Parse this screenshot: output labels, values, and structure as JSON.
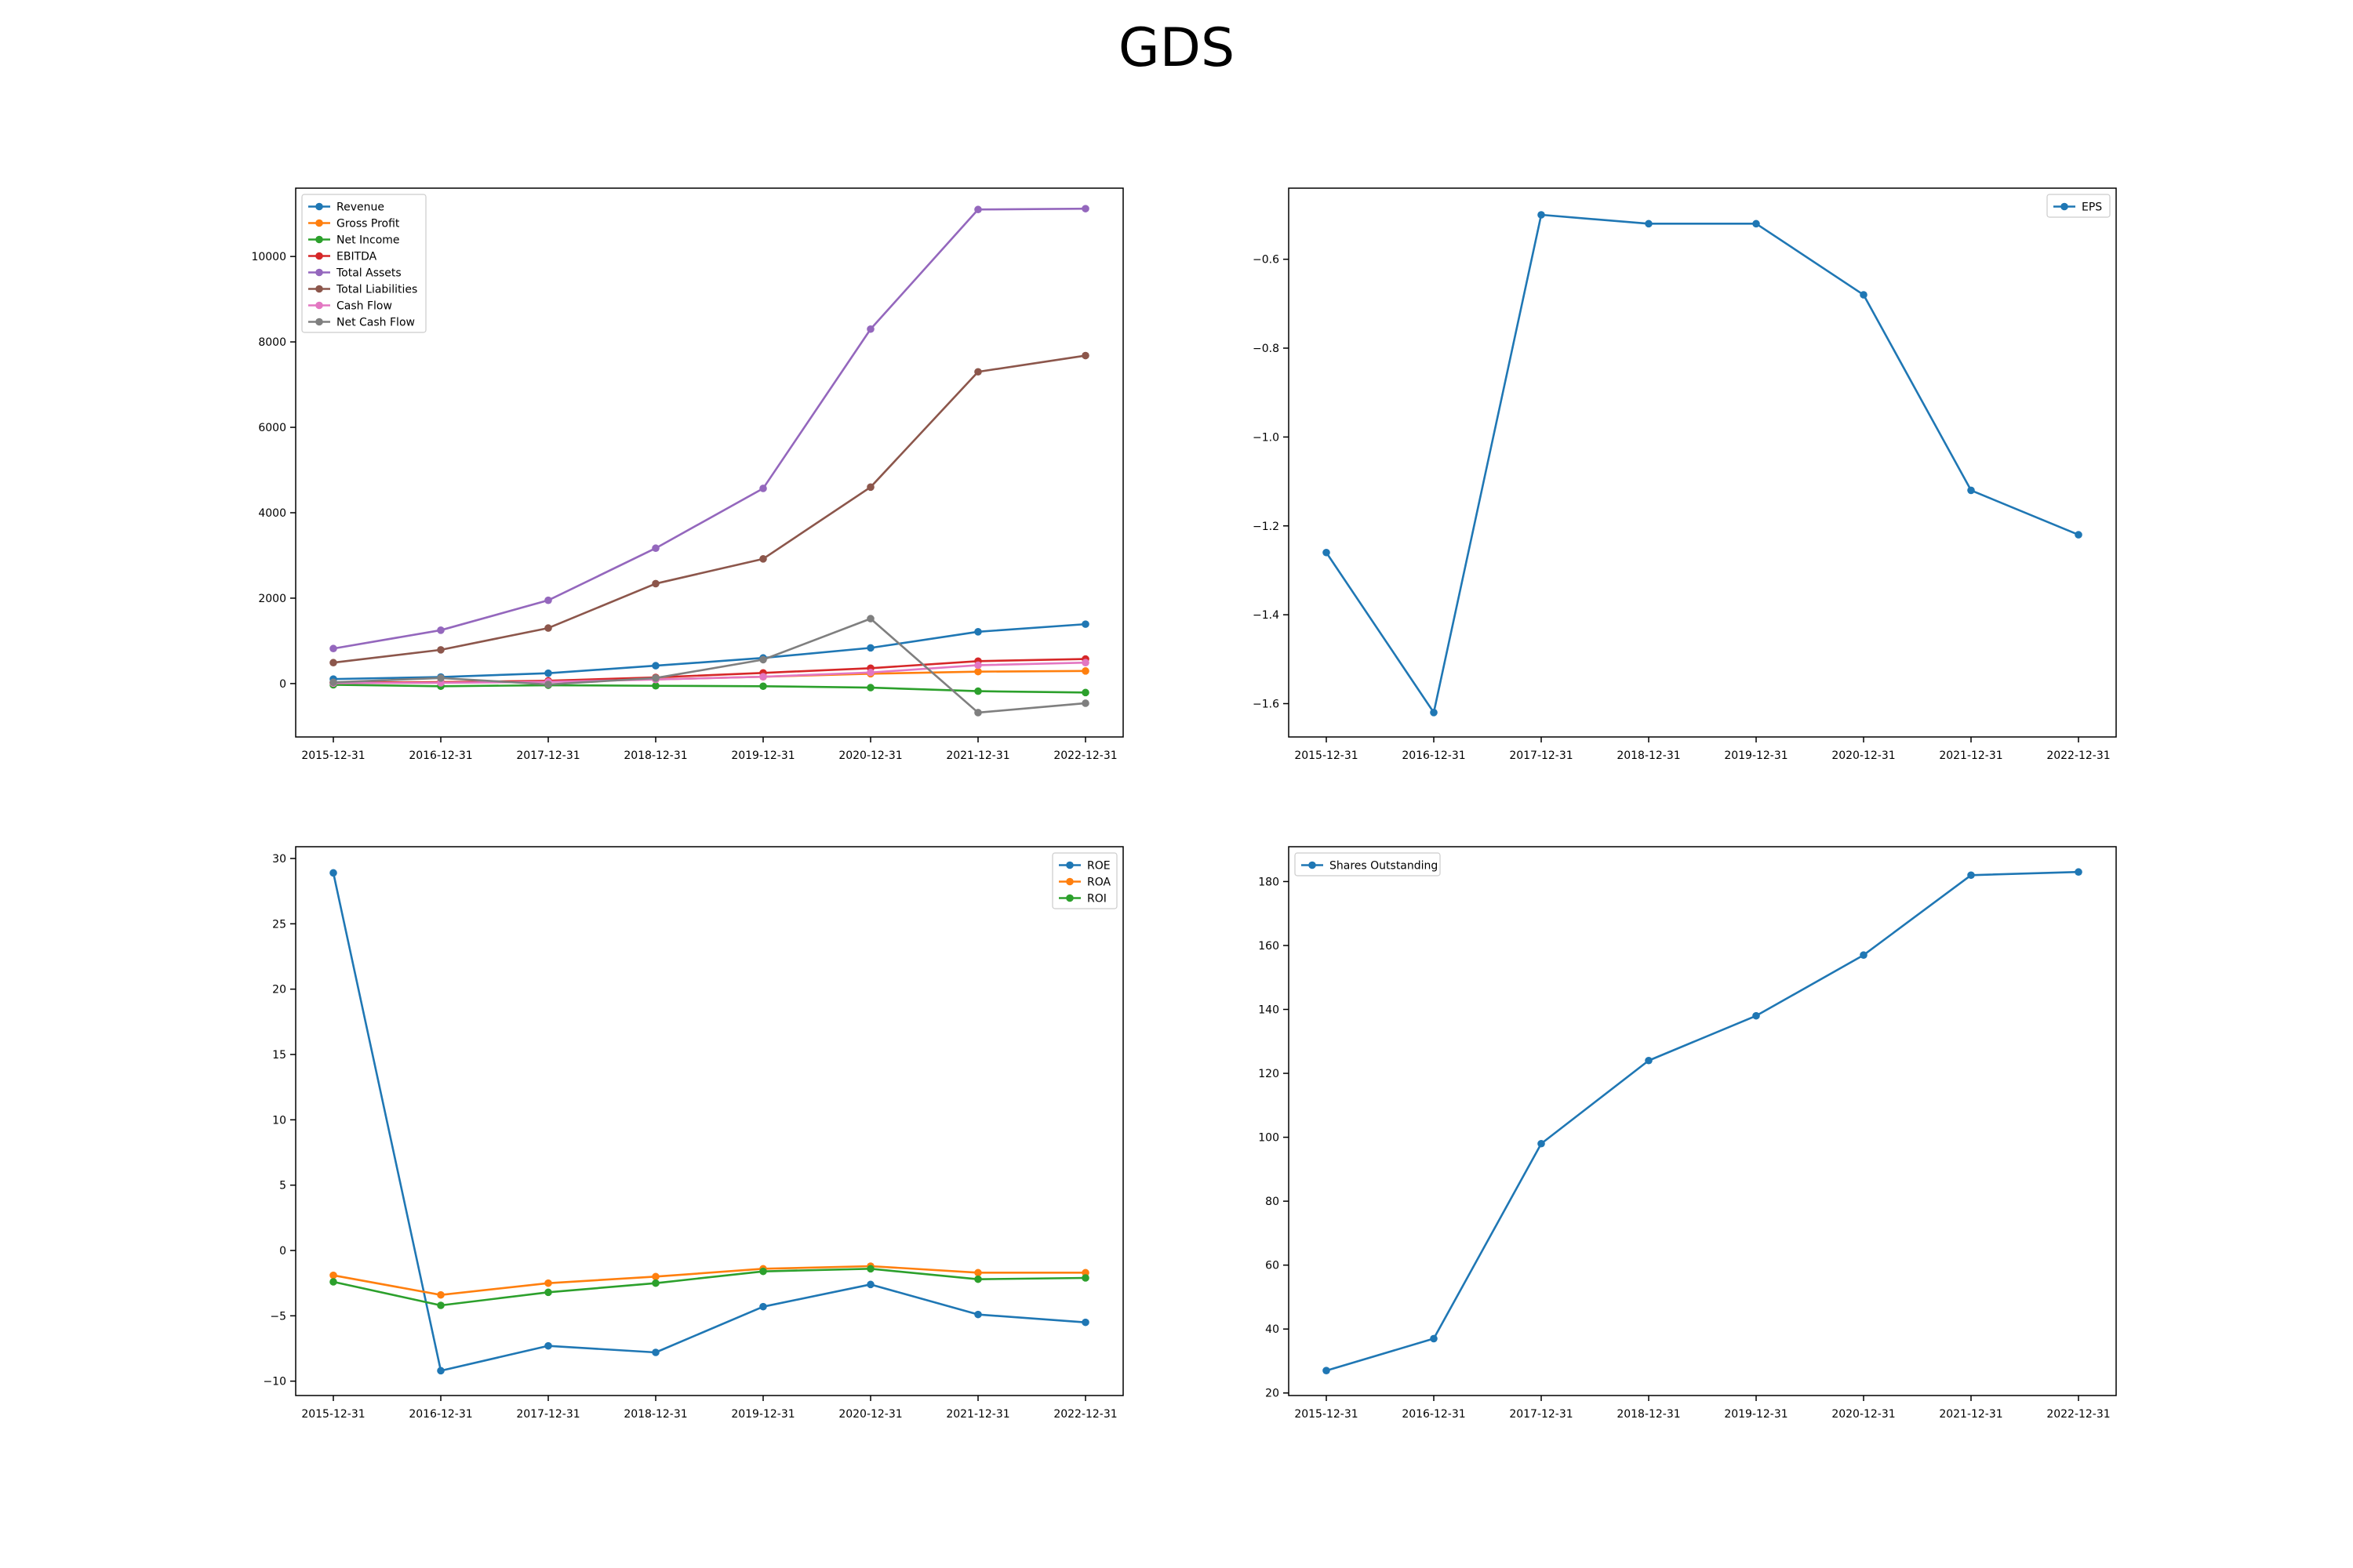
{
  "title": "GDS",
  "colors": {
    "blue": "#1f77b4",
    "orange": "#ff7f0e",
    "green": "#2ca02c",
    "red": "#d62728",
    "purple": "#9467bd",
    "brown": "#8c564b",
    "pink": "#e377c2",
    "gray": "#7f7f7f"
  },
  "chart_data": [
    {
      "type": "line",
      "categories": [
        "2015-12-31",
        "2016-12-31",
        "2017-12-31",
        "2018-12-31",
        "2019-12-31",
        "2020-12-31",
        "2021-12-31",
        "2022-12-31"
      ],
      "ylim": [
        -1250,
        11600
      ],
      "yticks": [
        0,
        2000,
        4000,
        6000,
        8000,
        10000
      ],
      "legend": "top-left",
      "series": [
        {
          "name": "Revenue",
          "color": "#1f77b4",
          "values": [
            106,
            154,
            243,
            419,
            600,
            836,
            1213,
            1391
          ]
        },
        {
          "name": "Gross Profit",
          "color": "#ff7f0e",
          "values": [
            20,
            35,
            58,
            98,
            160,
            230,
            280,
            295
          ]
        },
        {
          "name": "Net Income",
          "color": "#2ca02c",
          "values": [
            -29,
            -62,
            -39,
            -52,
            -62,
            -95,
            -178,
            -210
          ]
        },
        {
          "name": "EBITDA",
          "color": "#d62728",
          "values": [
            18,
            32,
            66,
            145,
            250,
            360,
            525,
            575
          ]
        },
        {
          "name": "Total Assets",
          "color": "#9467bd",
          "values": [
            820,
            1250,
            1950,
            3170,
            4570,
            8300,
            11100,
            11120
          ]
        },
        {
          "name": "Total Liabilities",
          "color": "#8c564b",
          "values": [
            490,
            790,
            1300,
            2340,
            2920,
            4600,
            7300,
            7680
          ]
        },
        {
          "name": "Cash Flow",
          "color": "#e377c2",
          "values": [
            10,
            18,
            40,
            95,
            160,
            260,
            430,
            490
          ]
        },
        {
          "name": "Net Cash Flow",
          "color": "#7f7f7f",
          "values": [
            30,
            130,
            -20,
            130,
            560,
            1520,
            -680,
            -460
          ]
        }
      ]
    },
    {
      "type": "line",
      "categories": [
        "2015-12-31",
        "2016-12-31",
        "2017-12-31",
        "2018-12-31",
        "2019-12-31",
        "2020-12-31",
        "2021-12-31",
        "2022-12-31"
      ],
      "ylim": [
        -1.675,
        -0.44
      ],
      "yticks": [
        -1.6,
        -1.4,
        -1.2,
        -1.0,
        -0.8,
        -0.6
      ],
      "legend": "top-right",
      "series": [
        {
          "name": "EPS",
          "color": "#1f77b4",
          "values": [
            -1.26,
            -1.62,
            -0.5,
            -0.52,
            -0.52,
            -0.68,
            -1.12,
            -1.22
          ]
        }
      ]
    },
    {
      "type": "line",
      "categories": [
        "2015-12-31",
        "2016-12-31",
        "2017-12-31",
        "2018-12-31",
        "2019-12-31",
        "2020-12-31",
        "2021-12-31",
        "2022-12-31"
      ],
      "ylim": [
        -11.1,
        30.9
      ],
      "yticks": [
        -10,
        -5,
        0,
        5,
        10,
        15,
        20,
        25,
        30
      ],
      "legend": "top-right",
      "series": [
        {
          "name": "ROE",
          "color": "#1f77b4",
          "values": [
            28.9,
            -9.2,
            -7.3,
            -7.8,
            -4.3,
            -2.6,
            -4.9,
            -5.5
          ]
        },
        {
          "name": "ROA",
          "color": "#ff7f0e",
          "values": [
            -1.9,
            -3.4,
            -2.5,
            -2.0,
            -1.4,
            -1.2,
            -1.7,
            -1.7
          ]
        },
        {
          "name": "ROI",
          "color": "#2ca02c",
          "values": [
            -2.4,
            -4.2,
            -3.2,
            -2.5,
            -1.6,
            -1.4,
            -2.2,
            -2.1
          ]
        }
      ]
    },
    {
      "type": "line",
      "categories": [
        "2015-12-31",
        "2016-12-31",
        "2017-12-31",
        "2018-12-31",
        "2019-12-31",
        "2020-12-31",
        "2021-12-31",
        "2022-12-31"
      ],
      "ylim": [
        19.2,
        190.9
      ],
      "yticks": [
        20,
        40,
        60,
        80,
        100,
        120,
        140,
        160,
        180
      ],
      "legend": "top-left",
      "series": [
        {
          "name": "Shares Outstanding",
          "color": "#1f77b4",
          "values": [
            27,
            37,
            98,
            124,
            138,
            157,
            182,
            183
          ]
        }
      ]
    }
  ]
}
